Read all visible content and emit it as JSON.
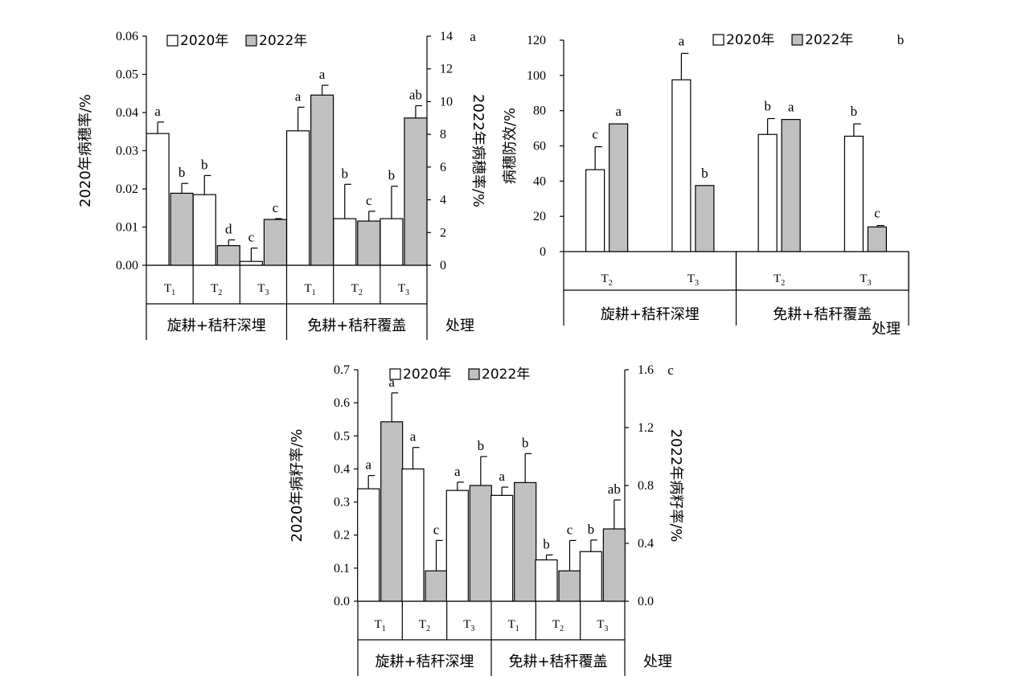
{
  "chart_data": [
    {
      "type": "bar",
      "panel_label": "a",
      "legend": [
        "2020年",
        "2022年"
      ],
      "ylabel_left": "2020年病穗率/%",
      "ylabel_right": "2022年病穗率/%",
      "xlabel": "处理",
      "groups": [
        "旋耕+秸秆深埋",
        "免耕+秸秆覆盖"
      ],
      "categories": [
        "T1",
        "T2",
        "T3",
        "T1",
        "T2",
        "T3"
      ],
      "left_axis": {
        "ylim": [
          0,
          0.06
        ],
        "ticks": [
          "0.00",
          "0.01",
          "0.02",
          "0.03",
          "0.04",
          "0.05",
          "0.06"
        ]
      },
      "right_axis": {
        "ylim": [
          0,
          14
        ],
        "ticks": [
          "0",
          "2",
          "4",
          "6",
          "8",
          "10",
          "12",
          "14"
        ]
      },
      "series": [
        {
          "name": "2020年",
          "axis": "left",
          "values": [
            0.0345,
            0.0185,
            0.001,
            0.0352,
            0.0122,
            0.0122
          ],
          "errors": [
            0.003,
            0.005,
            0.0035,
            0.0062,
            0.009,
            0.0085
          ],
          "letters": [
            "a",
            "b",
            "c",
            "a",
            "b",
            "b"
          ]
        },
        {
          "name": "2022年",
          "axis": "right",
          "values": [
            4.4,
            1.2,
            2.8,
            10.4,
            2.7,
            9.0
          ],
          "errors": [
            0.6,
            0.35,
            0.05,
            0.6,
            0.6,
            0.75
          ],
          "letters": [
            "b",
            "d",
            "c",
            "a",
            "c",
            "ab"
          ]
        }
      ]
    },
    {
      "type": "bar",
      "panel_label": "b",
      "legend": [
        "2020年",
        "2022年"
      ],
      "ylabel": "病穗防效/%",
      "xlabel": "处理",
      "groups": [
        "旋耕+秸秆深埋",
        "免耕+秸秆覆盖"
      ],
      "categories": [
        "T2",
        "T3",
        "T2",
        "T3"
      ],
      "ylim": [
        0,
        120
      ],
      "ticks": [
        "0",
        "20",
        "40",
        "60",
        "80",
        "100",
        "120"
      ],
      "series": [
        {
          "name": "2020年",
          "values": [
            46.5,
            97.5,
            66.5,
            65.5
          ],
          "errors": [
            13.0,
            15.0,
            9.0,
            7.0
          ],
          "letters": [
            "c",
            "a",
            "b",
            "b"
          ]
        },
        {
          "name": "2022年",
          "values": [
            72.5,
            37.5,
            75.0,
            14.0
          ],
          "errors": [
            0,
            0,
            0,
            0.8
          ],
          "letters": [
            "a",
            "b",
            "a",
            "c"
          ]
        }
      ]
    },
    {
      "type": "bar",
      "panel_label": "c",
      "legend": [
        "2020年",
        "2022年"
      ],
      "ylabel_left": "2020年病籽率/%",
      "ylabel_right": "2022年病籽率/%",
      "xlabel": "处理",
      "groups": [
        "旋耕+秸秆深埋",
        "免耕+秸秆覆盖"
      ],
      "categories": [
        "T1",
        "T2",
        "T3",
        "T1",
        "T2",
        "T3"
      ],
      "left_axis": {
        "ylim": [
          0,
          0.7
        ],
        "ticks": [
          "0.0",
          "0.1",
          "0.2",
          "0.3",
          "0.4",
          "0.5",
          "0.6",
          "0.7"
        ]
      },
      "right_axis": {
        "ylim": [
          0,
          1.6
        ],
        "ticks": [
          "0.0",
          "0.4",
          "0.8",
          "1.2",
          "1.6"
        ]
      },
      "series": [
        {
          "name": "2020年",
          "axis": "left",
          "values": [
            0.34,
            0.4,
            0.335,
            0.32,
            0.125,
            0.15
          ],
          "errors": [
            0.04,
            0.065,
            0.025,
            0.025,
            0.015,
            0.035
          ],
          "letters": [
            "a",
            "a",
            "a",
            "a",
            "b",
            "b"
          ]
        },
        {
          "name": "2022年",
          "axis": "right",
          "values": [
            1.24,
            0.21,
            0.8,
            0.82,
            0.21,
            0.5
          ],
          "errors": [
            0.2,
            0.21,
            0.2,
            0.2,
            0.21,
            0.2
          ],
          "letters": [
            "a",
            "c",
            "b",
            "b",
            "c",
            "ab"
          ]
        }
      ]
    }
  ]
}
